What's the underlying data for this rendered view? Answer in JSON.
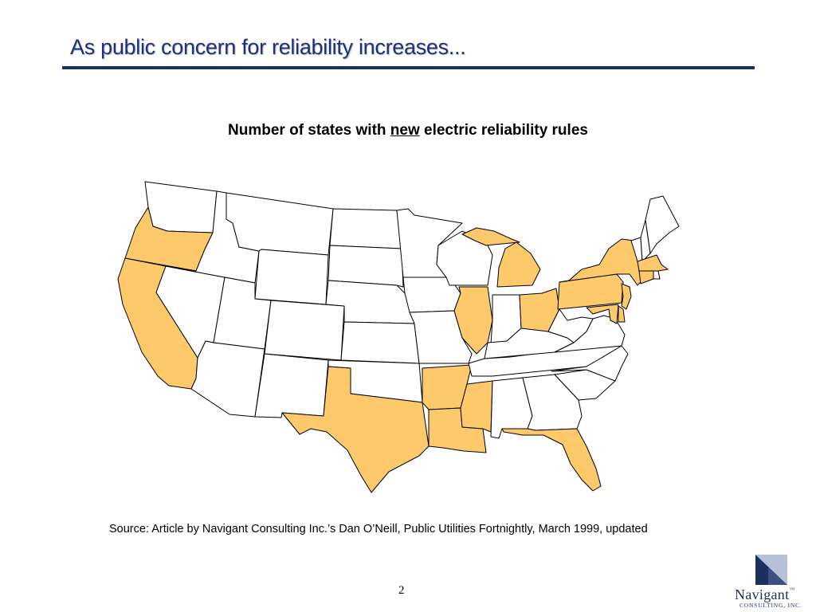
{
  "header": {
    "title": "As public concern for reliability increases..."
  },
  "subtitle": {
    "before": "Number of states with ",
    "emph": "new",
    "after": " electric reliability rules"
  },
  "map": {
    "highlight_color": "#FDC96B",
    "base_color": "#ffffff",
    "outline_color": "#000000",
    "highlighted_states": [
      "Oregon",
      "California",
      "Texas",
      "Arkansas",
      "Louisiana",
      "Mississippi",
      "Illinois",
      "Michigan",
      "Ohio",
      "Pennsylvania",
      "New York",
      "New Jersey",
      "Maryland",
      "Delaware",
      "Florida",
      "Massachusetts",
      "Connecticut"
    ]
  },
  "source": {
    "text": "Source: Article by Navigant Consulting Inc.’s Dan O’Neill, Public Utilities Fortnightly, March 1999, updated"
  },
  "footer": {
    "page_number": "2"
  },
  "logo": {
    "name": "Navigant",
    "mark": "™",
    "subline": "CONSULTING, INC.",
    "colors": {
      "primary": "#1f2f5c",
      "accent": "#8d9dbd"
    }
  }
}
